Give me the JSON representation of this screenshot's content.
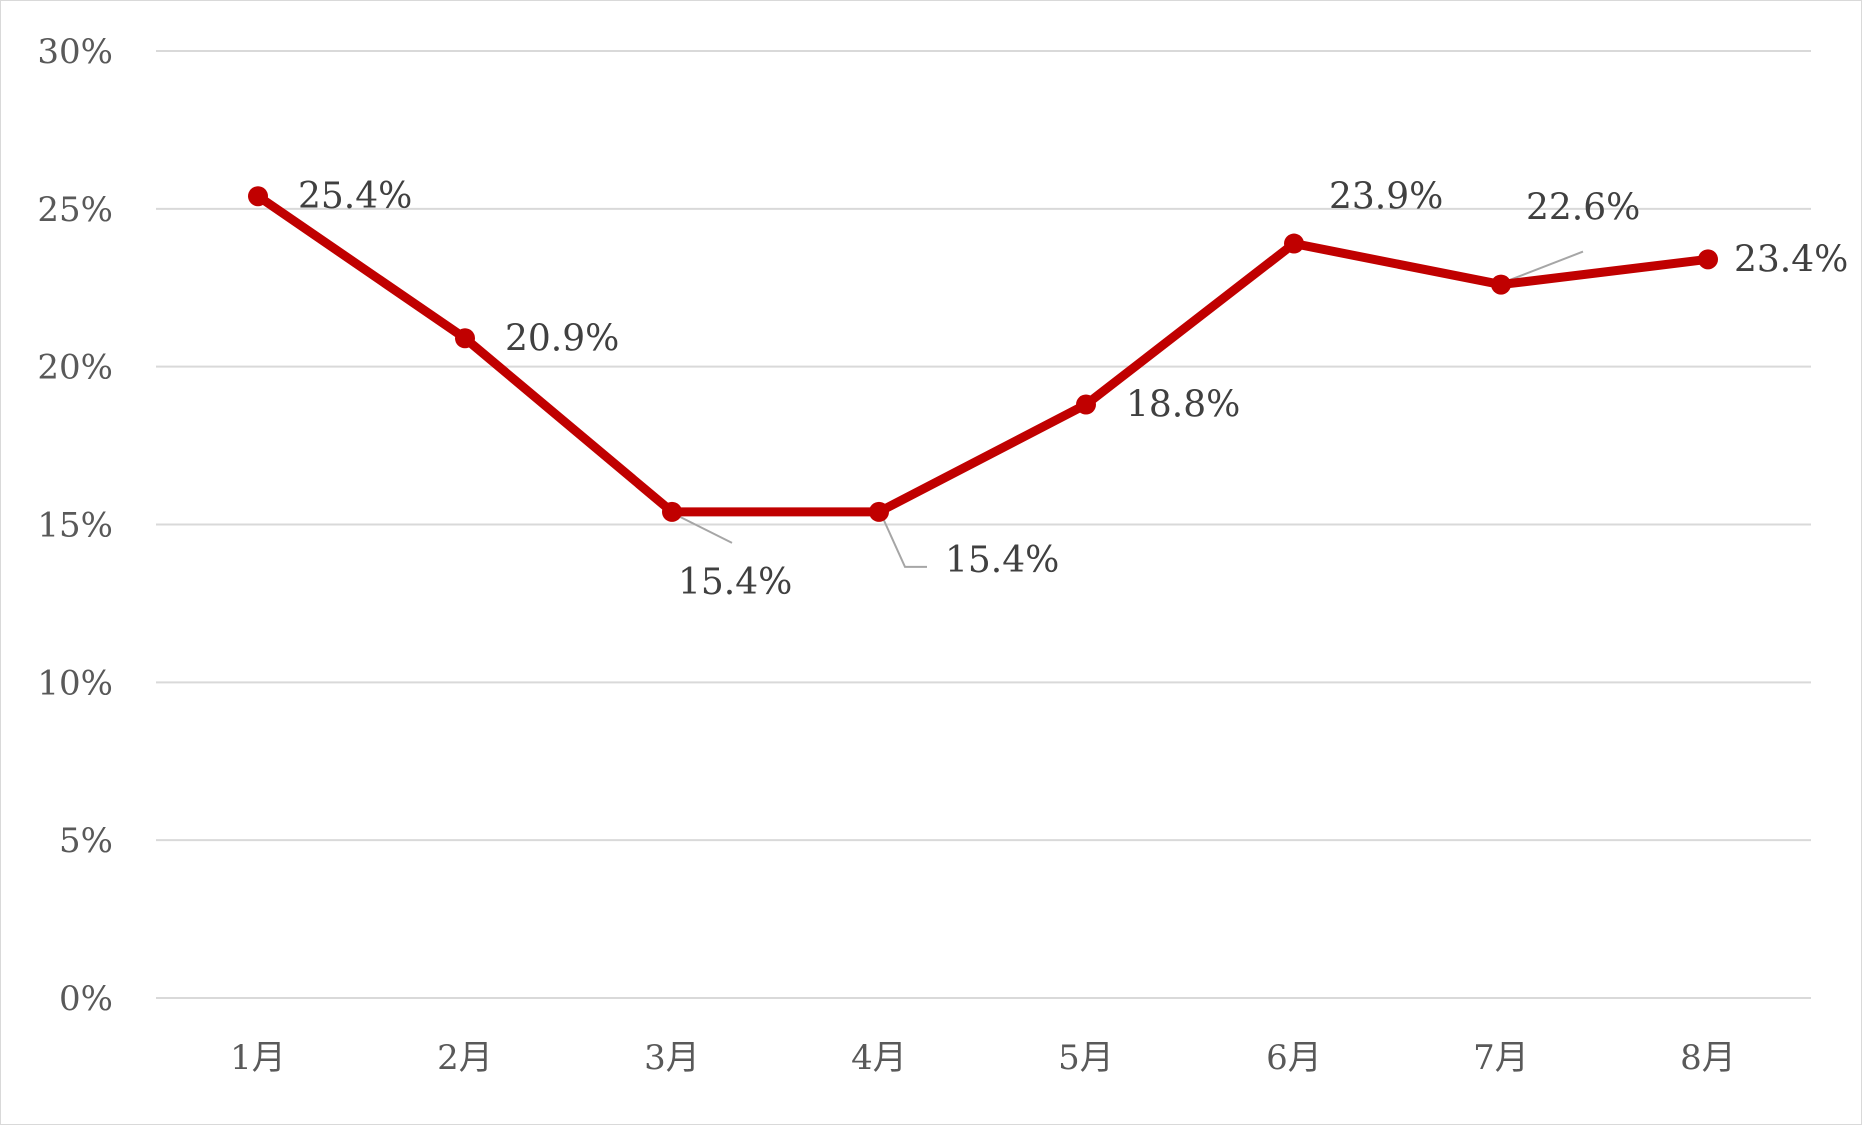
{
  "chart_data": {
    "type": "line",
    "categories": [
      "1月",
      "2月",
      "3月",
      "4月",
      "5月",
      "6月",
      "7月",
      "8月"
    ],
    "series": [
      {
        "values": [
          25.4,
          20.9,
          15.4,
          15.4,
          18.8,
          23.9,
          22.6,
          23.4
        ],
        "labels": [
          "25.4%",
          "20.9%",
          "15.4%",
          "15.4%",
          "18.8%",
          "23.9%",
          "22.6%",
          "23.4%"
        ],
        "color": "#c00000"
      }
    ],
    "yticks": [
      "0%",
      "5%",
      "10%",
      "15%",
      "20%",
      "25%",
      "30%"
    ],
    "ylim": [
      0,
      30
    ],
    "grid": true,
    "legend": "none"
  }
}
